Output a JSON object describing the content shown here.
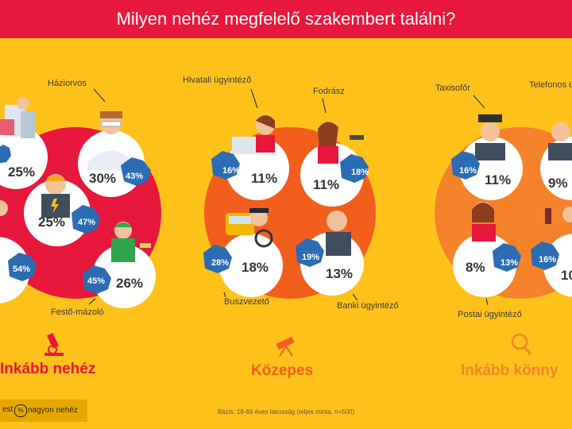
{
  "title": "Milyen nehéz megfelelő szakembert találni?",
  "groups": [
    {
      "label": "Inkább nehéz",
      "color": "#e8173c",
      "icon": "microscope-icon",
      "jobs": [
        {
          "name": "",
          "value": "25%",
          "blue": ""
        },
        {
          "name": "Háziorvos",
          "value": "30%",
          "blue": "43%"
        },
        {
          "name": "",
          "value": "25%",
          "blue": "47%"
        },
        {
          "name": "",
          "value": "",
          "blue": "54%"
        },
        {
          "name": "Festő-mázoló",
          "value": "26%",
          "blue": "45%"
        }
      ]
    },
    {
      "label": "Közepes",
      "color": "#f25f1c",
      "icon": "telescope-icon",
      "jobs": [
        {
          "name": "Hivatali ügyintéző",
          "value": "11%",
          "blue": "16%"
        },
        {
          "name": "Fodrász",
          "value": "11%",
          "blue": "18%"
        },
        {
          "name": "Buszvezető",
          "value": "18%",
          "blue": "28%"
        },
        {
          "name": "Banki ügyintéző",
          "value": "13%",
          "blue": "19%"
        }
      ]
    },
    {
      "label": "Inkább könny",
      "color": "#f5822a",
      "icon": "magnifier-icon",
      "jobs": [
        {
          "name": "Taxisofőr",
          "value": "11%",
          "blue": "16%"
        },
        {
          "name": "Telefonos ügyfélszolg",
          "value": "9%",
          "blue": ""
        },
        {
          "name": "Postai ügyintéző",
          "value": "8%",
          "blue": "13%"
        },
        {
          "name": "",
          "value": "10",
          "blue": "16%"
        }
      ]
    }
  ],
  "legend": {
    "text_left": "est",
    "badge": "%",
    "label": "nagyon nehéz"
  },
  "footnote": "Bázis: 18-69 éves lakosság (teljes minta, n=500)"
}
